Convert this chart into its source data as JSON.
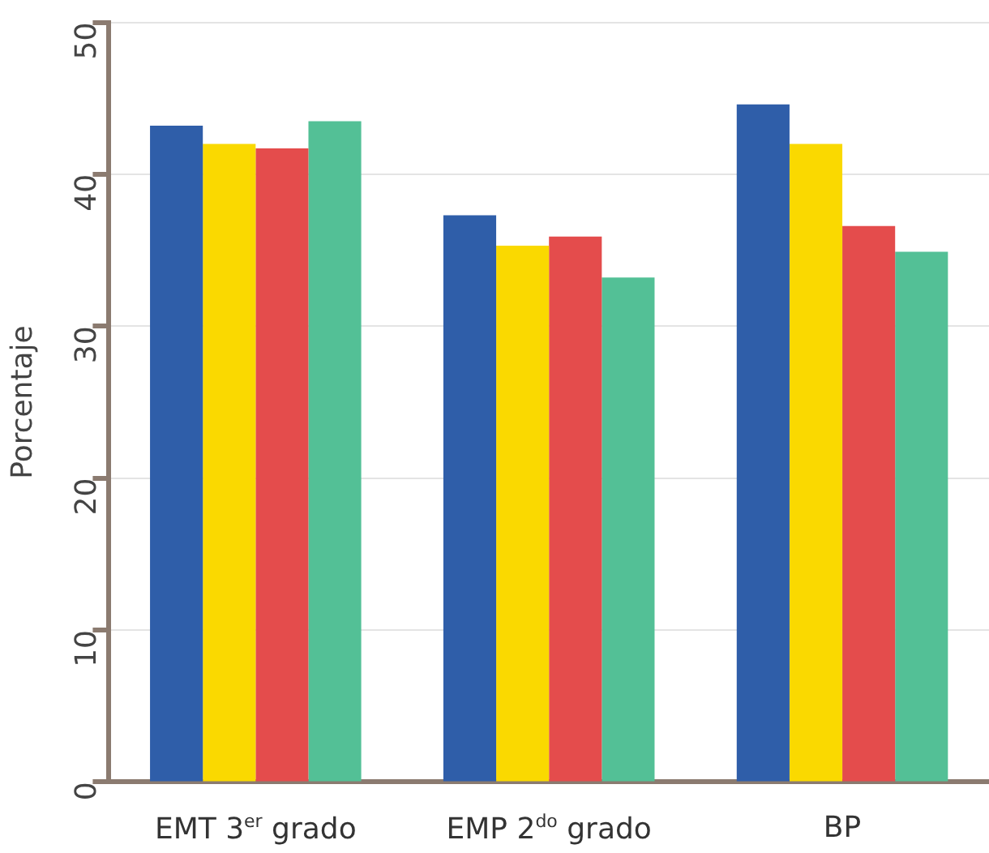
{
  "chart_data": {
    "type": "bar",
    "ylabel": "Porcentaje",
    "categories": [
      "EMT 3$^{er}$ grado",
      "EMP 2$^{do}$ grado",
      "BP"
    ],
    "series": [
      {
        "color": "#2f5ea9",
        "values": [
          43.2,
          37.3,
          44.6
        ]
      },
      {
        "color": "#fad900",
        "values": [
          42.0,
          35.3,
          42.0
        ]
      },
      {
        "color": "#e44c4c",
        "values": [
          41.7,
          35.9,
          36.6
        ]
      },
      {
        "color": "#53c096",
        "values": [
          43.5,
          33.2,
          34.9
        ]
      }
    ],
    "ylim": [
      0,
      50
    ],
    "yticks": [
      0,
      10,
      20,
      30,
      40,
      50
    ],
    "grid": "y",
    "legend": false
  }
}
